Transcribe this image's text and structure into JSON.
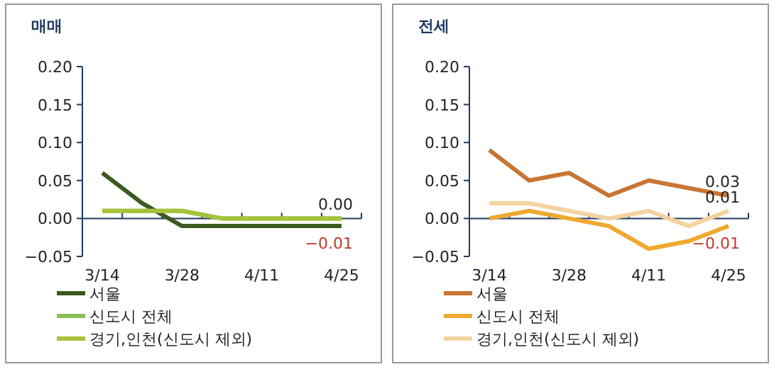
{
  "chart_data": [
    {
      "type": "line",
      "title": "매매",
      "categories": [
        "3/14",
        null,
        "3/28",
        null,
        "4/11",
        null,
        "4/25"
      ],
      "ylim": [
        -0.05,
        0.2
      ],
      "yticks": [
        {
          "value": -0.05,
          "label": "−0.05"
        },
        {
          "value": 0,
          "label": "0.00"
        },
        {
          "value": 0.05,
          "label": "0.05"
        },
        {
          "value": 0.1,
          "label": "0.10"
        },
        {
          "value": 0.15,
          "label": "0.15"
        },
        {
          "value": 0.2,
          "label": "0.20"
        }
      ],
      "legend": "bottom",
      "series": [
        {
          "name": "서울",
          "color": "#3d5a1e",
          "values": [
            0.06,
            0.02,
            -0.01,
            -0.01,
            -0.01,
            -0.01,
            -0.01
          ],
          "value_labels": [
            null,
            null,
            null,
            null,
            null,
            null,
            "−0.01"
          ]
        },
        {
          "name": "신도시 전체",
          "color": "#8cc05a",
          "values": [
            0.01,
            0.01,
            0.01,
            0,
            0,
            0,
            0
          ],
          "value_labels": [
            null,
            null,
            null,
            null,
            null,
            null,
            "0.00"
          ]
        },
        {
          "name": "경기,인천(신도시 제외)",
          "color": "#a6c23a",
          "values": [
            0.01,
            0.01,
            0.01,
            0,
            0,
            0,
            0
          ]
        }
      ]
    },
    {
      "type": "line",
      "title": "전세",
      "categories": [
        "3/14",
        null,
        "3/28",
        null,
        "4/11",
        null,
        "4/25"
      ],
      "ylim": [
        -0.05,
        0.2
      ],
      "yticks": [
        {
          "value": -0.05,
          "label": "−0.05"
        },
        {
          "value": 0,
          "label": "0.00"
        },
        {
          "value": 0.05,
          "label": "0.05"
        },
        {
          "value": 0.1,
          "label": "0.10"
        },
        {
          "value": 0.15,
          "label": "0.15"
        },
        {
          "value": 0.2,
          "label": "0.20"
        }
      ],
      "legend": "bottom",
      "series": [
        {
          "name": "서울",
          "color": "#c87533",
          "values": [
            0.09,
            0.05,
            0.06,
            0.03,
            0.05,
            0.04,
            0.03
          ],
          "value_labels": [
            null,
            null,
            null,
            null,
            null,
            null,
            "0.03"
          ]
        },
        {
          "name": "신도시 전체",
          "color": "#f0a830",
          "values": [
            0,
            0.01,
            0,
            -0.01,
            -0.04,
            -0.03,
            -0.01
          ],
          "value_labels": [
            null,
            null,
            null,
            null,
            null,
            null,
            "−0.01"
          ]
        },
        {
          "name": "경기,인천(신도시 제외)",
          "color": "#f3d3a0",
          "values": [
            0.02,
            0.02,
            0.01,
            0,
            0.01,
            -0.01,
            0.01
          ],
          "value_labels": [
            null,
            null,
            null,
            null,
            null,
            null,
            "0.01"
          ]
        }
      ]
    }
  ]
}
